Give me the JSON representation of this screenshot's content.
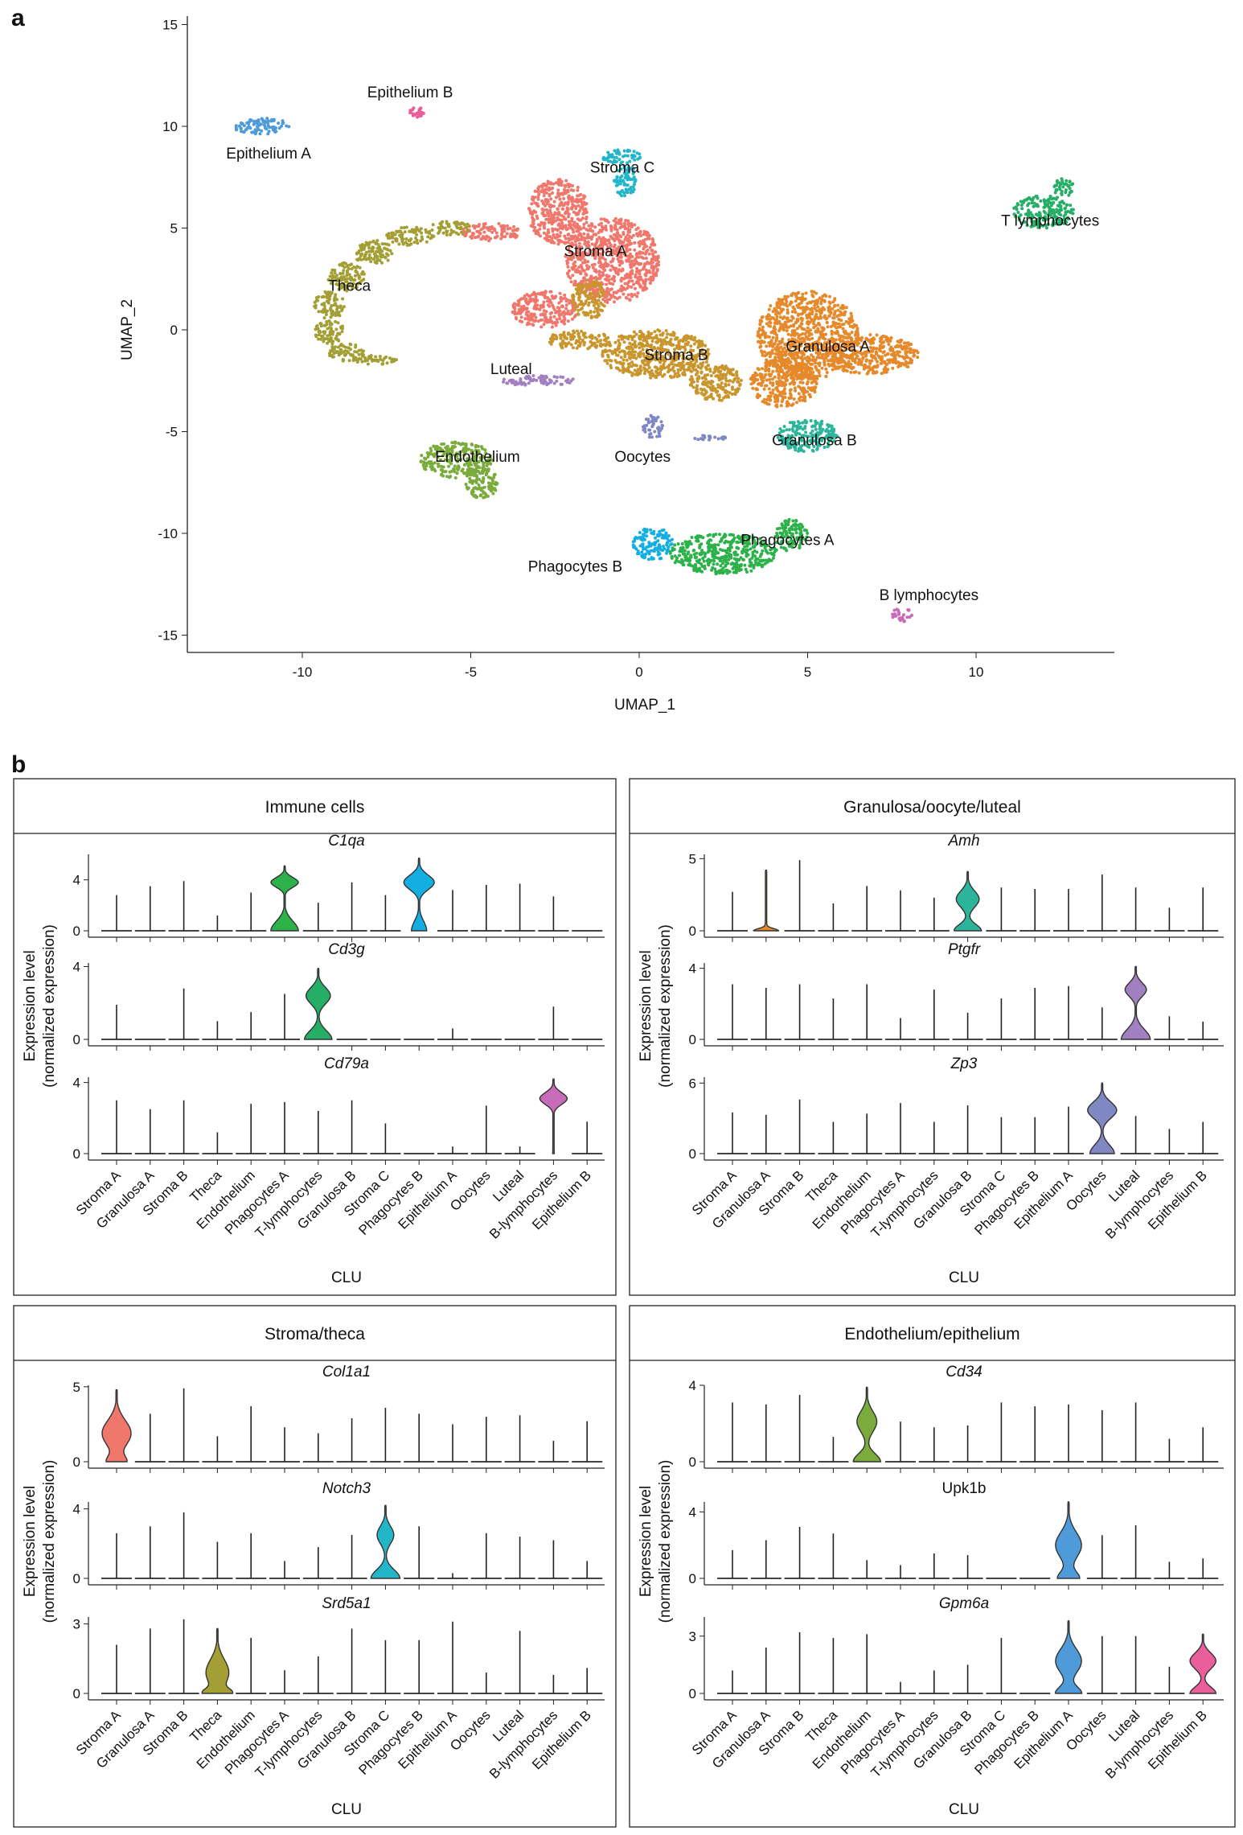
{
  "figure": {
    "panel_a_label": "a",
    "panel_b_label": "b"
  },
  "chart_data": [
    {
      "type": "scatter",
      "xlabel": "UMAP_1",
      "ylabel": "UMAP_2",
      "xlim": [
        -13.5,
        14
      ],
      "ylim": [
        -16,
        16
      ],
      "xticks": [
        -10,
        -5,
        0,
        5,
        10
      ],
      "yticks": [
        -15,
        -10,
        -5,
        0,
        5,
        10,
        15
      ],
      "grid": false,
      "clusters": [
        {
          "label": "Epithelium A",
          "color": "#4f9bd9",
          "label_at": [
            -11.0,
            8.7
          ],
          "regions": [
            [
              -11.2,
              10.0,
              0.85,
              0.4
            ]
          ]
        },
        {
          "label": "Epithelium B",
          "color": "#ea5e9c",
          "label_at": [
            -6.8,
            11.7
          ],
          "regions": [
            [
              -6.6,
              10.7,
              0.22,
              0.25
            ]
          ]
        },
        {
          "label": "Stroma C",
          "color": "#22b6c8",
          "label_at": [
            -0.5,
            8.0
          ],
          "regions": [
            [
              -0.5,
              8.5,
              0.6,
              0.35
            ],
            [
              -0.4,
              7.3,
              0.35,
              0.8
            ]
          ]
        },
        {
          "label": "Stroma A",
          "color": "#f0776c",
          "label_at": [
            -1.3,
            3.9
          ],
          "regions": [
            [
              -0.8,
              3.4,
              1.4,
              2.1
            ],
            [
              -2.4,
              5.8,
              0.9,
              1.6
            ],
            [
              -2.8,
              1.0,
              1.0,
              0.9
            ],
            [
              -4.4,
              4.8,
              0.9,
              0.45
            ]
          ]
        },
        {
          "label": "Theca",
          "color": "#a39f35",
          "label_at": [
            -8.6,
            2.2
          ],
          "regions": [
            [
              -5.6,
              5.0,
              0.6,
              0.35
            ],
            [
              -6.8,
              4.6,
              0.7,
              0.45
            ],
            [
              -7.9,
              3.8,
              0.6,
              0.6
            ],
            [
              -8.7,
              2.6,
              0.55,
              0.7
            ],
            [
              -9.2,
              1.2,
              0.45,
              0.7
            ],
            [
              -9.2,
              -0.1,
              0.45,
              0.6
            ],
            [
              -8.7,
              -1.1,
              0.55,
              0.45
            ],
            [
              -7.8,
              -1.5,
              0.6,
              0.25
            ]
          ]
        },
        {
          "label": "T lymphocytes",
          "color": "#26ae66",
          "label_at": [
            12.2,
            5.4
          ],
          "regions": [
            [
              12.0,
              5.8,
              0.9,
              0.8
            ],
            [
              12.6,
              7.0,
              0.3,
              0.5
            ]
          ]
        },
        {
          "label": "Granulosa A",
          "color": "#e5892b",
          "label_at": [
            5.6,
            -0.8
          ],
          "regions": [
            [
              5.0,
              -0.3,
              1.5,
              2.2
            ],
            [
              6.8,
              -1.2,
              1.5,
              1.0
            ],
            [
              4.3,
              -2.6,
              1.0,
              1.2
            ]
          ]
        },
        {
          "label": "Stroma B",
          "color": "#c9962e",
          "label_at": [
            1.1,
            -1.2
          ],
          "regions": [
            [
              0.5,
              -1.2,
              1.6,
              1.2
            ],
            [
              -1.8,
              -0.5,
              1.0,
              0.45
            ],
            [
              2.3,
              -2.6,
              0.8,
              0.9
            ],
            [
              -1.5,
              1.5,
              0.5,
              1.0
            ]
          ]
        },
        {
          "label": "Luteal",
          "color": "#a27fc0",
          "label_at": [
            -3.8,
            -1.9
          ],
          "regions": [
            [
              -3.0,
              -2.5,
              1.1,
              0.25
            ]
          ]
        },
        {
          "label": "Granulosa B",
          "color": "#2db59b",
          "label_at": [
            5.2,
            -5.4
          ],
          "regions": [
            [
              5.0,
              -5.2,
              0.9,
              0.8
            ]
          ]
        },
        {
          "label": "Oocytes",
          "color": "#8088c4",
          "label_at": [
            0.1,
            -6.2
          ],
          "regions": [
            [
              0.4,
              -4.8,
              0.3,
              0.6
            ],
            [
              2.1,
              -5.3,
              0.5,
              0.12
            ]
          ]
        },
        {
          "label": "Endothelium",
          "color": "#7aab3c",
          "label_at": [
            -4.8,
            -6.2
          ],
          "regions": [
            [
              -5.4,
              -6.4,
              1.1,
              0.9
            ],
            [
              -4.7,
              -7.5,
              0.5,
              0.8
            ]
          ]
        },
        {
          "label": "Phagocytes A",
          "color": "#2db24a",
          "label_at": [
            4.4,
            -10.3
          ],
          "regions": [
            [
              2.5,
              -11.0,
              1.6,
              1.0
            ],
            [
              4.5,
              -10.1,
              0.5,
              0.8
            ]
          ]
        },
        {
          "label": "Phagocytes B",
          "color": "#14aee3",
          "label_at": [
            -1.9,
            -11.6
          ],
          "regions": [
            [
              0.4,
              -10.5,
              0.6,
              0.8
            ]
          ]
        },
        {
          "label": "B lymphocytes",
          "color": "#c86bb8",
          "label_at": [
            8.6,
            -13.0
          ],
          "regions": [
            [
              7.8,
              -14.0,
              0.3,
              0.35
            ]
          ]
        }
      ]
    },
    {
      "type": "violin",
      "title": "Immune cells",
      "xlabel": "CLU",
      "ylabel": [
        "Expression level",
        "(normalized expression)"
      ],
      "categories": [
        "Stroma A",
        "Granulosa A",
        "Stroma B",
        "Theca",
        "Endothelium",
        "Phagocytes A",
        "T-lymphocytes",
        "Granulosa B",
        "Stroma C",
        "Phagocytes B",
        "Epithelium A",
        "Oocytes",
        "Luteal",
        "B-lymphocytes",
        "Epithelium B"
      ],
      "genes": [
        {
          "name": "C1qa",
          "italic": true,
          "ylim": [
            0,
            6
          ],
          "yticks": [
            0,
            4
          ],
          "max_values": [
            2.8,
            3.5,
            3.9,
            1.2,
            3.0,
            5.1,
            2.2,
            3.8,
            2.8,
            5.7,
            3.2,
            3.6,
            3.7,
            2.7,
            0
          ],
          "violins": [
            {
              "category": 5,
              "color": "#2db24a",
              "max": 5.1,
              "mode": 3.8,
              "density_peak": 0.9,
              "density_base": 0.9
            },
            {
              "category": 9,
              "color": "#14aee3",
              "max": 5.7,
              "mode": 3.8,
              "density_peak": 1.0,
              "density_base": 0.5
            }
          ]
        },
        {
          "name": "Cd3g",
          "italic": true,
          "ylim": [
            0,
            4.2
          ],
          "yticks": [
            0,
            4
          ],
          "max_values": [
            1.9,
            0,
            2.8,
            1.0,
            1.5,
            2.5,
            3.9,
            0,
            0,
            0,
            0.6,
            0,
            0,
            1.8,
            0
          ],
          "violins": [
            {
              "category": 6,
              "color": "#26ae66",
              "max": 3.9,
              "mode": 2.4,
              "density_peak": 0.8,
              "density_base": 0.9
            }
          ]
        },
        {
          "name": "Cd79a",
          "italic": true,
          "ylim": [
            0,
            4.3
          ],
          "yticks": [
            0,
            4
          ],
          "max_values": [
            3.0,
            2.5,
            3.0,
            1.2,
            2.8,
            2.9,
            2.4,
            3.0,
            1.7,
            0,
            0.4,
            2.7,
            0.4,
            4.2,
            1.8
          ],
          "violins": [
            {
              "category": 13,
              "color": "#c86bb8",
              "max": 4.2,
              "mode": 3.1,
              "density_peak": 0.9,
              "density_base": 0.05
            }
          ]
        }
      ]
    },
    {
      "type": "violin",
      "title": "Granulosa/oocyte/luteal",
      "xlabel": "CLU",
      "ylabel": [
        "Expression level",
        "(normalized expression)"
      ],
      "categories": [
        "Stroma A",
        "Granulosa A",
        "Stroma B",
        "Theca",
        "Endothelium",
        "Phagocytes A",
        "T-lymphocytes",
        "Granulosa B",
        "Stroma C",
        "Phagocytes B",
        "Epithelium A",
        "Oocytes",
        "Luteal",
        "B-lymphocytes",
        "Epithelium B"
      ],
      "genes": [
        {
          "name": "Amh",
          "italic": true,
          "ylim": [
            0,
            5.3
          ],
          "yticks": [
            0,
            5
          ],
          "max_values": [
            2.7,
            4.2,
            4.9,
            1.9,
            3.1,
            2.8,
            2.3,
            4.1,
            3.0,
            2.9,
            2.9,
            3.9,
            3.0,
            1.6,
            3.0
          ],
          "violins": [
            {
              "category": 1,
              "color": "#e5892b",
              "max": 4.2,
              "mode": 0.1,
              "density_peak": 0.05,
              "density_base": 0.8
            },
            {
              "category": 7,
              "color": "#2db59b",
              "max": 4.1,
              "mode": 2.2,
              "density_peak": 0.75,
              "density_base": 0.9
            }
          ]
        },
        {
          "name": "Ptgfr",
          "italic": true,
          "ylim": [
            0,
            4.3
          ],
          "yticks": [
            0,
            4
          ],
          "max_values": [
            3.1,
            2.9,
            3.1,
            2.3,
            3.1,
            1.2,
            2.8,
            1.5,
            2.3,
            2.9,
            3.0,
            1.8,
            4.1,
            1.3,
            1.0
          ],
          "violins": [
            {
              "category": 12,
              "color": "#a27fc0",
              "max": 4.1,
              "mode": 2.8,
              "density_peak": 0.7,
              "density_base": 0.95
            }
          ]
        },
        {
          "name": "Zp3",
          "italic": true,
          "ylim": [
            0,
            6.5
          ],
          "yticks": [
            0,
            6
          ],
          "max_values": [
            3.5,
            3.3,
            4.6,
            2.7,
            3.4,
            4.3,
            2.7,
            4.1,
            3.1,
            3.1,
            4.0,
            6.0,
            3.2,
            2.1,
            2.7
          ],
          "violins": [
            {
              "category": 11,
              "color": "#8088c4",
              "max": 6.0,
              "mode": 3.7,
              "density_peak": 0.95,
              "density_base": 0.8
            }
          ]
        }
      ]
    },
    {
      "type": "violin",
      "title": "Stroma/theca",
      "xlabel": "CLU",
      "ylabel": [
        "Expression level",
        "(normalized expression)"
      ],
      "categories": [
        "Stroma A",
        "Granulosa A",
        "Stroma B",
        "Theca",
        "Endothelium",
        "Phagocytes A",
        "T-lymphocytes",
        "Granulosa B",
        "Stroma C",
        "Phagocytes B",
        "Epithelium A",
        "Oocytes",
        "Luteal",
        "B-lymphocytes",
        "Epithelium B"
      ],
      "genes": [
        {
          "name": "Col1a1",
          "italic": true,
          "ylim": [
            0,
            5.1
          ],
          "yticks": [
            0,
            5
          ],
          "max_values": [
            4.8,
            3.2,
            4.9,
            1.7,
            3.7,
            2.3,
            1.9,
            2.9,
            3.6,
            3.2,
            2.5,
            3.0,
            3.1,
            1.4,
            2.7
          ],
          "violins": [
            {
              "category": 0,
              "color": "#f0776c",
              "max": 4.8,
              "mode": 1.9,
              "density_peak": 0.95,
              "density_base": 0.6
            }
          ]
        },
        {
          "name": "Notch3",
          "italic": true,
          "ylim": [
            0,
            4.4
          ],
          "yticks": [
            0,
            4
          ],
          "max_values": [
            2.6,
            3.0,
            3.8,
            2.1,
            2.6,
            1.0,
            1.8,
            2.5,
            4.2,
            3.0,
            0.3,
            2.6,
            2.4,
            2.2,
            1.0
          ],
          "violins": [
            {
              "category": 8,
              "color": "#22b6c8",
              "max": 4.2,
              "mode": 2.5,
              "density_peak": 0.55,
              "density_base": 0.95
            }
          ]
        },
        {
          "name": "Srd5a1",
          "italic": true,
          "ylim": [
            0,
            3.3
          ],
          "yticks": [
            0,
            3
          ],
          "max_values": [
            2.1,
            2.8,
            3.2,
            2.8,
            2.4,
            1.0,
            1.6,
            2.8,
            2.3,
            2.3,
            3.1,
            0.9,
            2.7,
            0.8,
            1.1
          ],
          "violins": [
            {
              "category": 3,
              "color": "#a39f35",
              "max": 2.8,
              "mode": 0.9,
              "density_peak": 0.75,
              "density_base": 0.85
            }
          ]
        }
      ]
    },
    {
      "type": "violin",
      "title": "Endothelium/epithelium",
      "xlabel": "CLU",
      "ylabel": [
        "Expression level",
        "(normalized expression)"
      ],
      "categories": [
        "Stroma A",
        "Granulosa A",
        "Stroma B",
        "Theca",
        "Endothelium",
        "Phagocytes A",
        "T-lymphocytes",
        "Granulosa B",
        "Stroma C",
        "Phagocytes B",
        "Epithelium A",
        "Oocytes",
        "Luteal",
        "B-lymphocytes",
        "Epithelium B"
      ],
      "genes": [
        {
          "name": "Cd34",
          "italic": true,
          "ylim": [
            0,
            4.0
          ],
          "yticks": [
            0,
            4
          ],
          "max_values": [
            3.1,
            3.0,
            3.5,
            1.3,
            3.9,
            2.1,
            1.8,
            1.9,
            3.1,
            2.9,
            3.0,
            2.7,
            3.1,
            1.2,
            1.8
          ],
          "violins": [
            {
              "category": 4,
              "color": "#7aab3c",
              "max": 3.9,
              "mode": 2.1,
              "density_peak": 0.65,
              "density_base": 0.9
            }
          ]
        },
        {
          "name": "Upk1b",
          "italic": false,
          "ylim": [
            0,
            4.6
          ],
          "yticks": [
            0,
            4
          ],
          "max_values": [
            1.7,
            2.3,
            3.1,
            2.7,
            1.1,
            0.8,
            1.5,
            1.4,
            0,
            0,
            4.6,
            2.6,
            3.2,
            1.0,
            1.2
          ],
          "violins": [
            {
              "category": 10,
              "color": "#4f9bd9",
              "max": 4.6,
              "mode": 2.0,
              "density_peak": 0.85,
              "density_base": 0.7
            }
          ]
        },
        {
          "name": "Gpm6a",
          "italic": true,
          "ylim": [
            0,
            4.0
          ],
          "yticks": [
            0,
            3
          ],
          "max_values": [
            1.2,
            2.4,
            3.2,
            2.9,
            3.1,
            0.6,
            1.2,
            1.5,
            2.9,
            0,
            3.8,
            3.0,
            3.0,
            1.4,
            3.1
          ],
          "violins": [
            {
              "category": 10,
              "color": "#4f9bd9",
              "max": 3.8,
              "mode": 1.7,
              "density_peak": 0.85,
              "density_base": 0.85
            },
            {
              "category": 14,
              "color": "#ea5e9c",
              "max": 3.1,
              "mode": 1.7,
              "density_peak": 0.85,
              "density_base": 0.85
            }
          ]
        }
      ]
    }
  ]
}
